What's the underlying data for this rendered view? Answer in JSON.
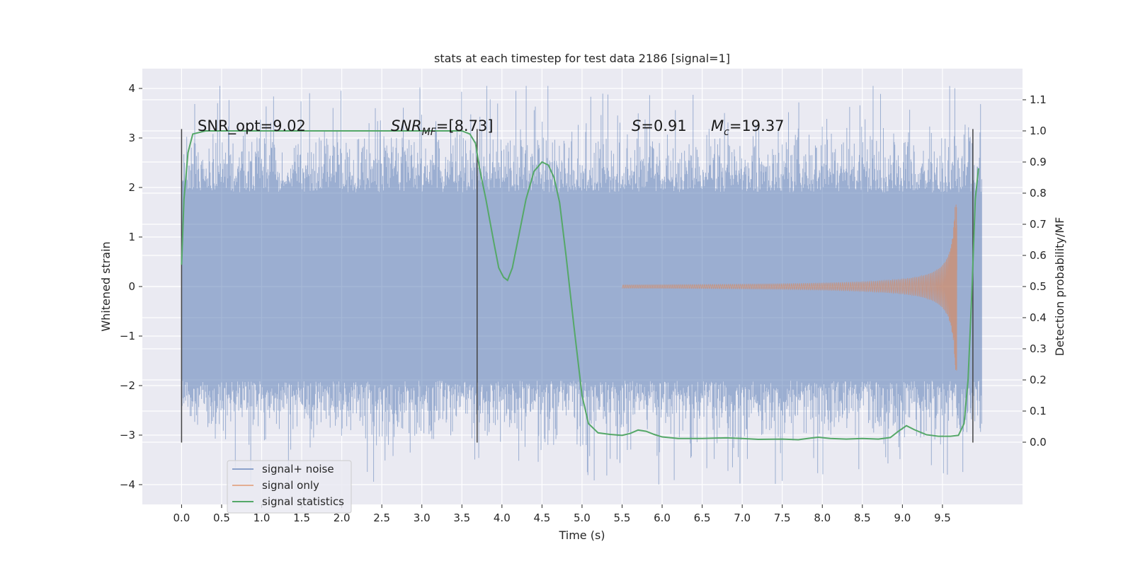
{
  "chart_data": {
    "type": "line",
    "title": "stats at each timestep for test data 2186 [signal=1]",
    "xlabel": "Time (s)",
    "ylabel": "Whitened strain",
    "ylabel_right": "Detection probability/MF",
    "xlim": [
      -0.49,
      10.5
    ],
    "ylim": [
      -4.4,
      4.4
    ],
    "ylim_right": [
      -0.2,
      1.2
    ],
    "x_ticks": [
      "0.0",
      "0.5",
      "1.0",
      "1.5",
      "2.0",
      "2.5",
      "3.0",
      "3.5",
      "4.0",
      "4.5",
      "5.0",
      "5.5",
      "6.0",
      "6.5",
      "7.0",
      "7.5",
      "8.0",
      "8.5",
      "9.0",
      "9.5"
    ],
    "y_ticks": [
      "4",
      "3",
      "2",
      "1",
      "0",
      "−1",
      "−2",
      "−3",
      "−4"
    ],
    "y_right_ticks": [
      "1.1",
      "1.0",
      "0.9",
      "0.8",
      "0.7",
      "0.6",
      "0.5",
      "0.4",
      "0.3",
      "0.2",
      "0.1",
      "0.0"
    ],
    "grid": true,
    "legend_position": "lower-left",
    "legend": [
      "signal+ noise",
      "signal only",
      "signal statistics"
    ],
    "annotations": {
      "snr_opt": "SNR_opt=9.02",
      "snr_mf_main": "SNR",
      "snr_mf_sub": "MF",
      "snr_mf_value": "=[8.73]",
      "s_main": "S",
      "s_value": "=0.91",
      "mc_main": "M",
      "mc_sub": "c",
      "mc_value": "=19.37"
    },
    "vertical_markers": [
      0.0,
      3.69,
      9.88
    ],
    "series": [
      {
        "name": "signal+ noise",
        "color": "#4c72b0",
        "x_range": [
          0.0,
          9.99
        ],
        "typical_range": [
          -1.9,
          1.9
        ],
        "peak_range": [
          -4.0,
          4.05
        ]
      },
      {
        "name": "signal only",
        "color": "#dd8452",
        "x_range": [
          5.5,
          9.68
        ],
        "peak_amplitude": 1.7,
        "peak_time": 9.66
      },
      {
        "name": "signal statistics",
        "color": "#55a868",
        "axis": "right",
        "points": [
          [
            0.0,
            0.57
          ],
          [
            0.03,
            0.78
          ],
          [
            0.08,
            0.93
          ],
          [
            0.14,
            0.99
          ],
          [
            0.3,
            1.0
          ],
          [
            1.0,
            1.0
          ],
          [
            2.0,
            1.0
          ],
          [
            3.0,
            1.0
          ],
          [
            3.5,
            1.0
          ],
          [
            3.6,
            0.99
          ],
          [
            3.67,
            0.96
          ],
          [
            3.72,
            0.88
          ],
          [
            3.8,
            0.78
          ],
          [
            3.9,
            0.64
          ],
          [
            3.96,
            0.56
          ],
          [
            4.02,
            0.53
          ],
          [
            4.07,
            0.52
          ],
          [
            4.13,
            0.56
          ],
          [
            4.2,
            0.65
          ],
          [
            4.3,
            0.78
          ],
          [
            4.4,
            0.87
          ],
          [
            4.5,
            0.9
          ],
          [
            4.58,
            0.89
          ],
          [
            4.65,
            0.85
          ],
          [
            4.72,
            0.77
          ],
          [
            4.8,
            0.6
          ],
          [
            4.9,
            0.37
          ],
          [
            5.0,
            0.15
          ],
          [
            5.08,
            0.06
          ],
          [
            5.2,
            0.03
          ],
          [
            5.35,
            0.025
          ],
          [
            5.5,
            0.022
          ],
          [
            5.6,
            0.028
          ],
          [
            5.7,
            0.039
          ],
          [
            5.8,
            0.035
          ],
          [
            5.9,
            0.025
          ],
          [
            6.0,
            0.017
          ],
          [
            6.2,
            0.012
          ],
          [
            6.5,
            0.012
          ],
          [
            6.8,
            0.014
          ],
          [
            7.0,
            0.012
          ],
          [
            7.2,
            0.009
          ],
          [
            7.5,
            0.01
          ],
          [
            7.7,
            0.008
          ],
          [
            7.85,
            0.013
          ],
          [
            7.95,
            0.016
          ],
          [
            8.1,
            0.012
          ],
          [
            8.3,
            0.01
          ],
          [
            8.5,
            0.012
          ],
          [
            8.7,
            0.01
          ],
          [
            8.85,
            0.015
          ],
          [
            8.95,
            0.035
          ],
          [
            9.05,
            0.053
          ],
          [
            9.15,
            0.04
          ],
          [
            9.3,
            0.024
          ],
          [
            9.45,
            0.019
          ],
          [
            9.6,
            0.019
          ],
          [
            9.7,
            0.022
          ],
          [
            9.77,
            0.06
          ],
          [
            9.82,
            0.2
          ],
          [
            9.87,
            0.5
          ],
          [
            9.91,
            0.78
          ],
          [
            9.95,
            0.88
          ]
        ]
      }
    ]
  }
}
